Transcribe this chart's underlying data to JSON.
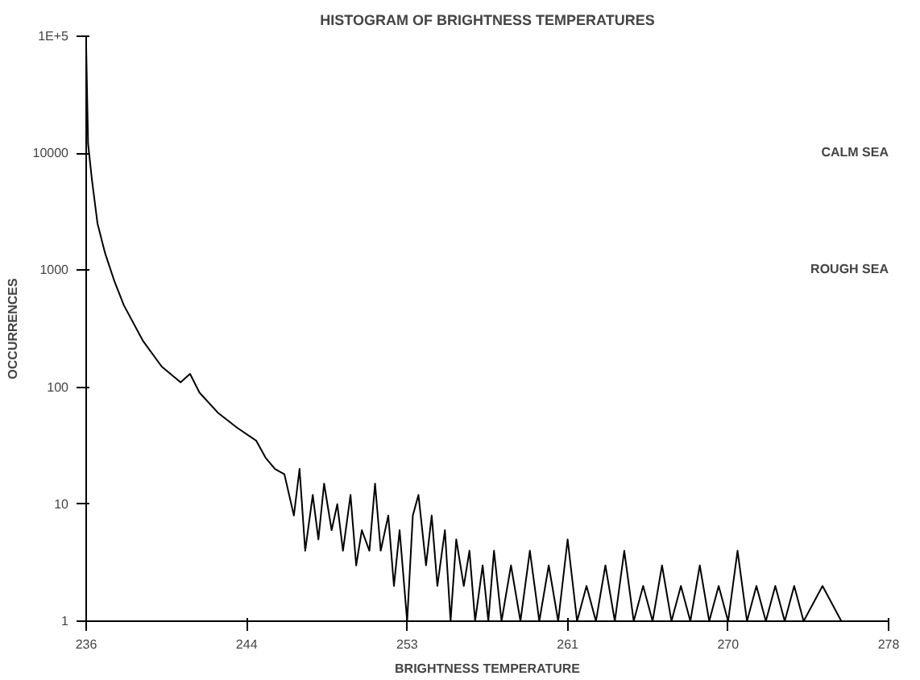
{
  "chart_data": {
    "type": "line",
    "title": "HISTOGRAM OF BRIGHTNESS TEMPERATURES",
    "xlabel": "BRIGHTNESS TEMPERATURE",
    "ylabel": "OCCURRENCES",
    "x": [
      236.0,
      236.1,
      236.3,
      236.6,
      237,
      237.5,
      238,
      239,
      240,
      241,
      241.5,
      242,
      243,
      244,
      245,
      245.5,
      246,
      246.5,
      247,
      247.3,
      247.6,
      248,
      248.3,
      248.6,
      249,
      249.3,
      249.6,
      250,
      250.3,
      250.6,
      251,
      251.3,
      251.6,
      252,
      252.3,
      252.6,
      253,
      253.3,
      253.6,
      254,
      254.3,
      254.6,
      255,
      255.3,
      255.6,
      256,
      256.3,
      256.6,
      257,
      257.3,
      257.6,
      258,
      258.5,
      259,
      259.5,
      260,
      260.5,
      261,
      261.5,
      262,
      262.5,
      263,
      263.5,
      264,
      264.5,
      265,
      265.5,
      266,
      266.5,
      267,
      267.5,
      268,
      268.5,
      269,
      269.5,
      270,
      270.5,
      271,
      271.5,
      272,
      272.5,
      273,
      273.5,
      274,
      275,
      276
    ],
    "values": [
      80000,
      12000,
      6000,
      2500,
      1400,
      800,
      500,
      250,
      150,
      110,
      130,
      90,
      60,
      45,
      35,
      25,
      20,
      18,
      8,
      20,
      4,
      12,
      5,
      15,
      6,
      10,
      4,
      12,
      3,
      6,
      4,
      15,
      4,
      8,
      2,
      6,
      1,
      8,
      12,
      3,
      8,
      2,
      6,
      1,
      5,
      2,
      4,
      1,
      3,
      1,
      4,
      1,
      3,
      1,
      4,
      1,
      3,
      1,
      5,
      1,
      2,
      1,
      3,
      1,
      4,
      1,
      2,
      1,
      3,
      1,
      2,
      1,
      3,
      1,
      2,
      1,
      4,
      1,
      2,
      1,
      2,
      1,
      2,
      1,
      2,
      1
    ],
    "color": "#000000",
    "log": "y",
    "xlim": [
      236,
      278.5
    ],
    "ylim": [
      1,
      100000
    ],
    "xticks": [
      {
        "value": 236,
        "label": "236"
      },
      {
        "value": 244.5,
        "label": "244"
      },
      {
        "value": 253,
        "label": "253"
      },
      {
        "value": 261.5,
        "label": "261"
      },
      {
        "value": 270,
        "label": "270"
      },
      {
        "value": 278.5,
        "label": "278"
      }
    ],
    "yticks": [
      1,
      10,
      100,
      1000,
      10000,
      {
        "value": 100000,
        "label": "1E+5"
      }
    ],
    "grid": false,
    "marker": "none",
    "line_style": "solid",
    "annotations": [
      "CALM SEA",
      "ROUGH SEA"
    ]
  }
}
